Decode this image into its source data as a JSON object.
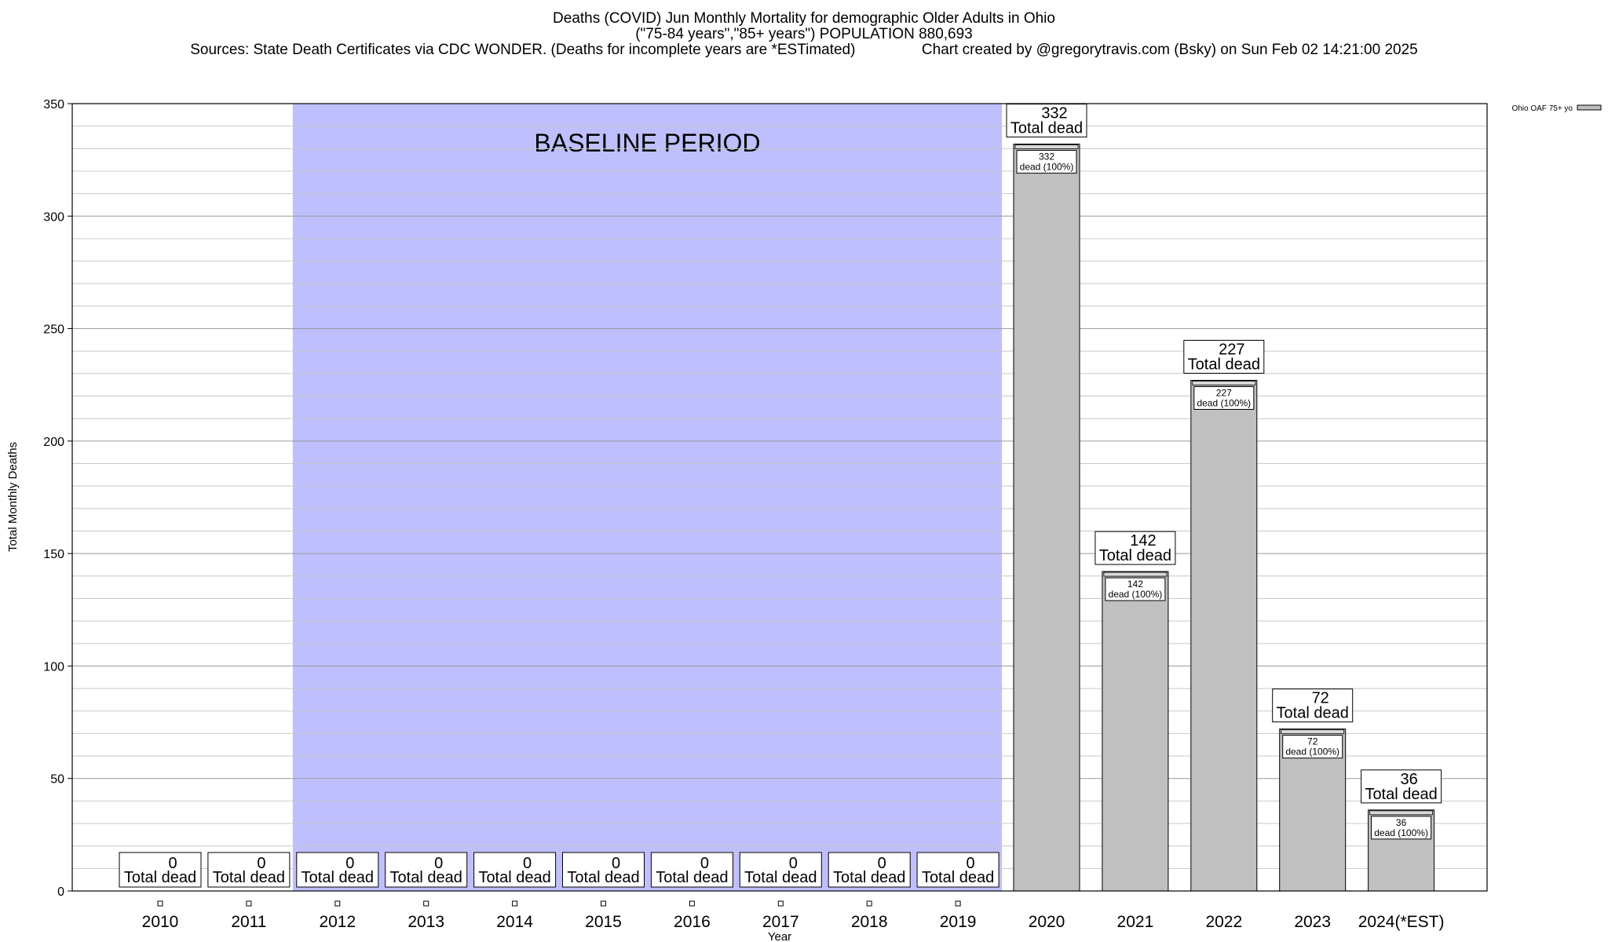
{
  "titles": {
    "line1": "Deaths (COVID) Jun Monthly Mortality for demographic Older Adults in Ohio",
    "line2": "(\"75-84 years\",\"85+ years\") POPULATION 880,693",
    "line3": "Sources: State Death Certificates via CDC WONDER. (Deaths for incomplete years are *ESTimated)                Chart created by @gregorytravis.com (Bsky) on Sun Feb 02 14:21:00 2025"
  },
  "chart_data": {
    "type": "bar",
    "xlabel": "Year",
    "ylabel": "Total Monthly Deaths",
    "ylim": [
      0,
      350
    ],
    "yticks": [
      0,
      50,
      100,
      150,
      200,
      250,
      300,
      350
    ],
    "minor_grid_step": 10,
    "grid": true,
    "legend": {
      "placement": "top-right",
      "label": "Ohio OAF 75+ yo"
    },
    "categories": [
      "2010",
      "2011",
      "2012",
      "2013",
      "2014",
      "2015",
      "2016",
      "2017",
      "2018",
      "2019",
      "2020",
      "2021",
      "2022",
      "2023",
      "2024(*EST)"
    ],
    "series": [
      {
        "name": "Ohio OAF 75+ yo",
        "values": [
          0,
          0,
          0,
          0,
          0,
          0,
          0,
          0,
          0,
          0,
          332,
          142,
          227,
          72,
          36
        ]
      }
    ],
    "baseline": {
      "label": "BASELINE PERIOD",
      "from": "2012",
      "to": "2019",
      "color": "#bfbffd"
    },
    "total_label": "Total dead",
    "inner_label": "dead (100%)",
    "bar_color": "#c0c0c0"
  }
}
